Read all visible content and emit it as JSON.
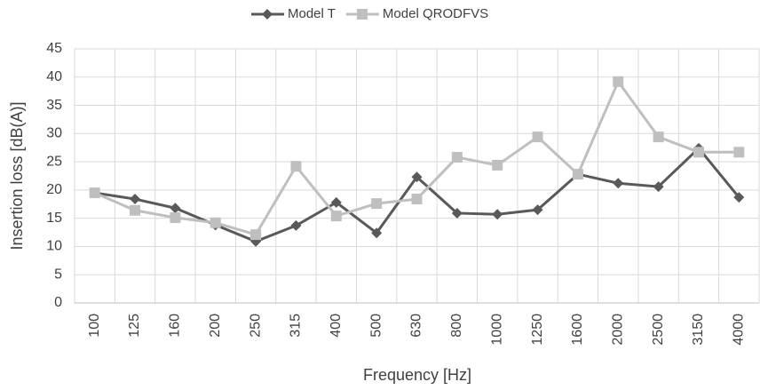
{
  "chart_data": {
    "type": "line",
    "xlabel": "Frequency [Hz]",
    "ylabel": "Insertion loss [dB(A)]",
    "categories": [
      "100",
      "125",
      "160",
      "200",
      "250",
      "315",
      "400",
      "500",
      "630",
      "800",
      "1000",
      "1250",
      "1600",
      "2000",
      "2500",
      "3150",
      "4000"
    ],
    "series": [
      {
        "name": "Model T",
        "color": "#595959",
        "marker": "diamond",
        "values": [
          19.5,
          18.4,
          16.8,
          13.8,
          10.9,
          13.7,
          17.8,
          12.4,
          22.3,
          15.9,
          15.7,
          16.5,
          22.8,
          21.2,
          20.6,
          27.4,
          18.7
        ]
      },
      {
        "name": "Model QRODFVS",
        "color": "#bfbfbf",
        "marker": "square",
        "values": [
          19.5,
          16.4,
          15.1,
          14.2,
          12.1,
          24.2,
          15.4,
          17.6,
          18.4,
          25.8,
          24.4,
          29.4,
          22.8,
          39.2,
          29.4,
          26.7,
          26.7
        ]
      }
    ],
    "ylim": [
      0,
      45
    ],
    "yticks": [
      0,
      5,
      10,
      15,
      20,
      25,
      30,
      35,
      40,
      45
    ],
    "grid": true,
    "legend": "top"
  }
}
